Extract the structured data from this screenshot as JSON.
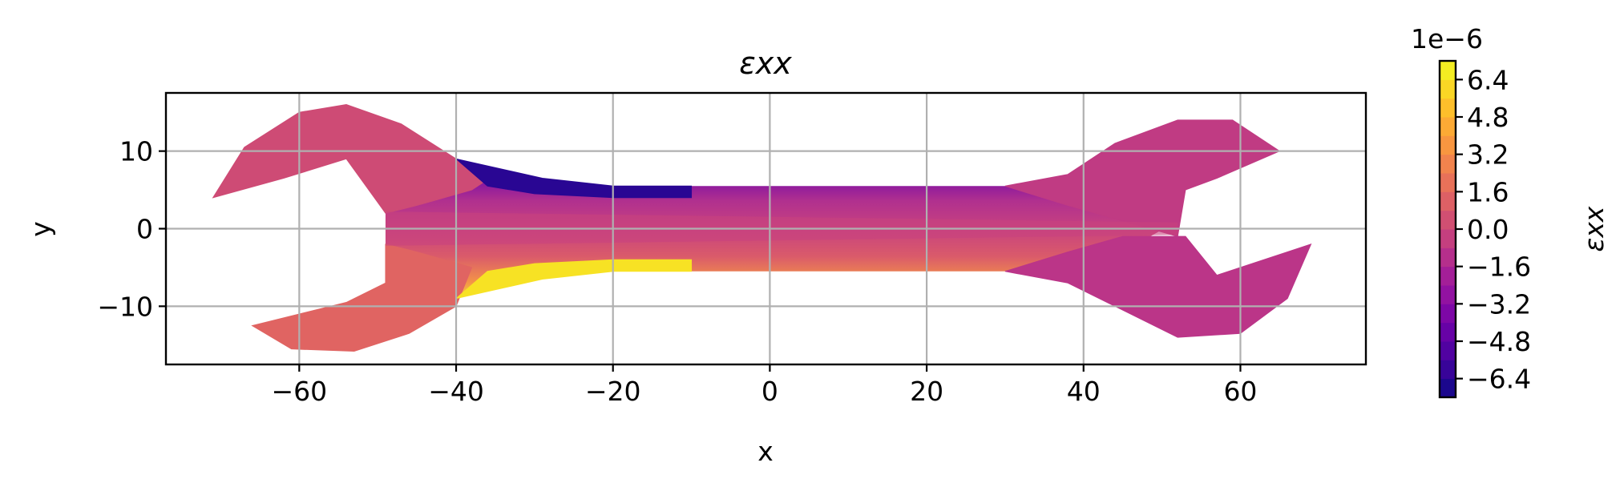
{
  "chart_data": {
    "type": "contour",
    "title": "εxx",
    "xlabel": "x",
    "ylabel": "y",
    "xlim": [
      -77,
      76
    ],
    "ylim": [
      -17.5,
      17.5
    ],
    "xticks": [
      "−60",
      "−40",
      "−20",
      "0",
      "20",
      "40",
      "60"
    ],
    "xtick_values": [
      -60,
      -40,
      -20,
      0,
      20,
      40,
      60
    ],
    "yticks": [
      "10",
      "0",
      "−10"
    ],
    "ytick_values": [
      10,
      0,
      -10
    ],
    "grid": true,
    "colorbar": {
      "label": "εxx",
      "offset_text": "1e−6",
      "colormap": "plasma",
      "range": [
        -7.2,
        7.2
      ],
      "ticks": [
        "6.4",
        "4.8",
        "3.2",
        "1.6",
        "0.0",
        "−1.6",
        "−3.2",
        "−4.8",
        "−6.4"
      ],
      "tick_values": [
        6.4,
        4.8,
        3.2,
        1.6,
        0.0,
        -1.6,
        -3.2,
        -4.8,
        -6.4
      ]
    },
    "regions": [
      {
        "name": "left-jaw-upper",
        "value": 0.2,
        "outline": [
          [
            -71,
            4
          ],
          [
            -67,
            10.5
          ],
          [
            -60,
            15
          ],
          [
            -54,
            16
          ],
          [
            -47,
            13.5
          ],
          [
            -40,
            9
          ],
          [
            -35,
            7
          ],
          [
            -38,
            5
          ],
          [
            -45,
            3
          ],
          [
            -49,
            2
          ],
          [
            -54,
            9
          ],
          [
            -62,
            6.5
          ]
        ]
      },
      {
        "name": "left-jaw-lower",
        "value": 1.4,
        "outline": [
          [
            -66,
            -12.5
          ],
          [
            -61,
            -15.5
          ],
          [
            -53,
            -15.8
          ],
          [
            -46,
            -13.5
          ],
          [
            -40,
            -10
          ],
          [
            -38,
            -5
          ],
          [
            -45,
            -3
          ],
          [
            -49,
            -2
          ],
          [
            -49,
            -7
          ],
          [
            -54,
            -9.5
          ]
        ]
      },
      {
        "name": "handle-top-compression",
        "value": -6.4,
        "outline": [
          [
            -40,
            9
          ],
          [
            -29,
            6.5
          ],
          [
            -20,
            5.5
          ],
          [
            -10,
            5.5
          ],
          [
            -10,
            4
          ],
          [
            -20,
            4
          ],
          [
            -30,
            4.5
          ],
          [
            -36,
            5.5
          ]
        ]
      },
      {
        "name": "handle-bottom-tension",
        "value": 6.4,
        "outline": [
          [
            -40,
            -9
          ],
          [
            -29,
            -6.5
          ],
          [
            -20,
            -5.5
          ],
          [
            -10,
            -5.5
          ],
          [
            -10,
            -4
          ],
          [
            -20,
            -4
          ],
          [
            -30,
            -4.5
          ],
          [
            -36,
            -5.5
          ]
        ]
      },
      {
        "name": "right-jaw-upper",
        "value": -0.6,
        "outline": [
          [
            30,
            5.5
          ],
          [
            38,
            7
          ],
          [
            44,
            11
          ],
          [
            52,
            14
          ],
          [
            59,
            14
          ],
          [
            65,
            10
          ],
          [
            57,
            6.5
          ],
          [
            53,
            5
          ],
          [
            52,
            -1
          ],
          [
            45,
            1
          ],
          [
            38,
            3
          ]
        ]
      },
      {
        "name": "right-jaw-lower",
        "value": -0.9,
        "outline": [
          [
            30,
            -5.5
          ],
          [
            38,
            -7
          ],
          [
            44,
            -10
          ],
          [
            52,
            -14
          ],
          [
            60,
            -13.5
          ],
          [
            66,
            -9
          ],
          [
            69,
            -2
          ],
          [
            57,
            -6
          ],
          [
            53,
            -1
          ],
          [
            45,
            -1
          ],
          [
            38,
            -3
          ]
        ]
      }
    ]
  }
}
